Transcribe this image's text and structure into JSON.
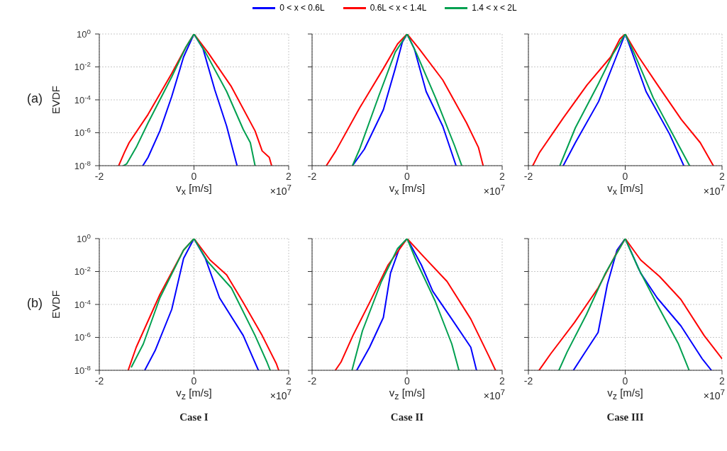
{
  "chart_data": [
    {
      "type": "line",
      "legend": "top",
      "ylabel": "EVDF",
      "xlabel": "v$_{x}$ [m/s]",
      "xlim": [
        -2,
        2
      ],
      "xticks": [
        -2,
        0,
        2
      ],
      "ylim": [
        1e-08,
        1
      ],
      "yticks": [
        {
          "value": 1,
          "label": "10$^{0}$"
        },
        {
          "value": 0.01,
          "label": "10$^{-2}$"
        },
        {
          "value": 0.0001,
          "label": "10$^{-4}$"
        },
        {
          "value": 1e-06,
          "label": "10$^{-6}$"
        },
        {
          "value": 1e-08,
          "label": "10$^{-8}$"
        }
      ],
      "log": "y",
      "grid": true,
      "annotations": [
        "×10$^{7}$",
        "(a)"
      ],
      "series": [
        {
          "name": "0 < x < 0.6L",
          "color": "#0000ff",
          "x": [
            -1.08,
            -0.97,
            -0.72,
            -0.47,
            -0.22,
            0,
            0.19,
            0.44,
            0.69,
            0.91
          ],
          "values": [
            1e-08,
            3.2e-08,
            1.3e-06,
            0.00016,
            0.04,
            1,
            0.13,
            0.0004,
            2.5e-06,
            1e-08
          ]
        },
        {
          "name": "0.6L < x < 1.4L",
          "color": "#ff0000",
          "x": [
            -1.59,
            -1.47,
            -1.37,
            -0.97,
            -0.47,
            -0.17,
            0,
            0.29,
            0.79,
            1.29,
            1.44,
            1.59,
            1.64
          ],
          "values": [
            1e-08,
            6.3e-08,
            2.5e-07,
            1.3e-05,
            0.004,
            0.16,
            1,
            0.079,
            0.00063,
            1.3e-06,
            7.9e-08,
            3.2e-08,
            1e-08
          ]
        },
        {
          "name": "1.4 < x < 2L",
          "color": "#00a050",
          "x": [
            -1.49,
            -1.42,
            -1.22,
            -0.97,
            -0.47,
            -0.17,
            0,
            0.24,
            0.69,
            1.04,
            1.19,
            1.29
          ],
          "values": [
            1e-08,
            1.3e-08,
            1.3e-07,
            4e-06,
            0.0025,
            0.16,
            1,
            0.079,
            0.00032,
            1.6e-06,
            2.5e-07,
            1e-08
          ]
        }
      ]
    },
    {
      "type": "line",
      "xlabel": "v$_{x}$ [m/s]",
      "xlim": [
        -2,
        2
      ],
      "xticks": [
        -2,
        0,
        2
      ],
      "ylim": [
        1e-08,
        1
      ],
      "yticks": [
        {
          "value": 1,
          "label": null
        },
        {
          "value": 0.01,
          "label": null
        },
        {
          "value": 0.0001,
          "label": null
        },
        {
          "value": 1e-06,
          "label": null
        },
        {
          "value": 1e-08,
          "label": null
        }
      ],
      "log": "y",
      "grid": true,
      "tick_labels": "x",
      "annotations": [
        "×10$^{7}$"
      ],
      "series": [
        {
          "color": "#0000ff",
          "x": [
            -1.15,
            -0.9,
            -0.5,
            -0.25,
            -0.1,
            0,
            0.15,
            0.4,
            0.75,
            1.03
          ],
          "values": [
            1e-08,
            1e-07,
            2.5e-05,
            0.0079,
            0.32,
            1,
            0.13,
            0.00032,
            2.5e-06,
            1e-08
          ]
        },
        {
          "color": "#ff0000",
          "x": [
            -1.7,
            -1.5,
            -1,
            -0.5,
            -0.2,
            0,
            0.25,
            0.75,
            1.25,
            1.5,
            1.6
          ],
          "values": [
            1e-08,
            7.9e-08,
            3.2e-05,
            0.0079,
            0.25,
            1,
            0.13,
            0.0016,
            4e-06,
            1.3e-07,
            1e-08
          ]
        },
        {
          "color": "#00a050",
          "x": [
            -1.15,
            -1,
            -0.6,
            -0.25,
            0,
            0.2,
            0.6,
            1,
            1.15
          ],
          "values": [
            1e-08,
            1e-07,
            0.00016,
            0.079,
            1,
            0.063,
            0.00013,
            1.6e-07,
            1e-08
          ]
        }
      ]
    },
    {
      "type": "line",
      "xlabel": "v$_{x}$ [m/s]",
      "xlim": [
        -2,
        2
      ],
      "xticks": [
        -2,
        0,
        2
      ],
      "ylim": [
        1e-08,
        1
      ],
      "yticks": [
        {
          "value": 1,
          "label": null
        },
        {
          "value": 0.01,
          "label": null
        },
        {
          "value": 0.0001,
          "label": null
        },
        {
          "value": 1e-06,
          "label": null
        },
        {
          "value": 1e-08,
          "label": null
        }
      ],
      "log": "y",
      "grid": true,
      "tick_labels": "x",
      "annotations": [
        "×10$^{7}$"
      ],
      "series": [
        {
          "color": "#0000ff",
          "x": [
            -1.28,
            -1.03,
            -0.55,
            -0.2,
            0,
            0.14,
            0.43,
            0.92,
            1.21
          ],
          "values": [
            1e-08,
            2.5e-07,
            7.9e-05,
            0.032,
            1,
            0.079,
            0.00032,
            7.9e-07,
            1e-08
          ]
        },
        {
          "color": "#ff0000",
          "x": [
            -1.91,
            -1.77,
            -1.28,
            -0.79,
            -0.3,
            -0.11,
            0,
            0.28,
            0.67,
            1.16,
            1.55,
            1.82
          ],
          "values": [
            1e-08,
            6.3e-08,
            7.9e-06,
            0.00079,
            0.04,
            0.5,
            1,
            0.04,
            0.00079,
            6.3e-06,
            2.5e-07,
            1e-08
          ]
        },
        {
          "color": "#00a050",
          "x": [
            -1.35,
            -1.03,
            -0.55,
            -0.25,
            0,
            0.19,
            0.58,
            1.11,
            1.33
          ],
          "values": [
            1e-08,
            2e-06,
            0.001,
            0.063,
            1,
            0.063,
            0.00013,
            1.6e-07,
            1e-08
          ]
        }
      ]
    },
    {
      "type": "line",
      "ylabel": "EVDF",
      "xlabel": "v$_{z}$ [m/s]",
      "xlim": [
        -2,
        2
      ],
      "xticks": [
        -2,
        0,
        2
      ],
      "ylim": [
        1e-08,
        1
      ],
      "yticks": [
        {
          "value": 1,
          "label": "10$^{0}$"
        },
        {
          "value": 0.01,
          "label": "10$^{-2}$"
        },
        {
          "value": 0.0001,
          "label": "10$^{-4}$"
        },
        {
          "value": 1e-06,
          "label": "10$^{-6}$"
        },
        {
          "value": 1e-08,
          "label": "10$^{-8}$"
        }
      ],
      "log": "y",
      "grid": true,
      "annotations": [
        "×10$^{7}$",
        "(b)",
        "Case I"
      ],
      "series": [
        {
          "color": "#0000ff",
          "x": [
            -1.04,
            -0.82,
            -0.47,
            -0.22,
            0,
            0.24,
            0.54,
            1.04,
            1.36
          ],
          "values": [
            1e-08,
            1.6e-07,
            5e-05,
            0.063,
            1,
            0.063,
            0.00025,
            1.3e-06,
            1e-08
          ]
        },
        {
          "color": "#ff0000",
          "x": [
            -1.39,
            -1.22,
            -0.72,
            -0.22,
            0,
            0.34,
            0.69,
            1.04,
            1.44,
            1.74,
            1.79
          ],
          "values": [
            1e-08,
            2.5e-07,
            0.0004,
            0.2,
            1,
            0.05,
            0.0063,
            0.00013,
            1.3e-06,
            2.5e-08,
            1e-08
          ]
        },
        {
          "color": "#00a050",
          "x": [
            -1.32,
            -1.07,
            -0.72,
            -0.22,
            0,
            0.29,
            0.79,
            1.29,
            1.54,
            1.61
          ],
          "values": [
            1.6e-08,
            4e-07,
            0.00025,
            0.2,
            1,
            0.04,
            0.001,
            1.3e-06,
            3.2e-08,
            1e-08
          ]
        }
      ]
    },
    {
      "type": "line",
      "xlabel": "v$_{z}$ [m/s]",
      "xlim": [
        -2,
        2
      ],
      "xticks": [
        -2,
        0,
        2
      ],
      "ylim": [
        1e-08,
        1
      ],
      "yticks": [
        {
          "value": 1,
          "label": null
        },
        {
          "value": 0.01,
          "label": null
        },
        {
          "value": 0.0001,
          "label": null
        },
        {
          "value": 1e-06,
          "label": null
        },
        {
          "value": 1e-08,
          "label": null
        }
      ],
      "log": "y",
      "grid": true,
      "tick_labels": "x",
      "annotations": [
        "×10$^{7}$",
        "Case II"
      ],
      "series": [
        {
          "color": "#0000ff",
          "x": [
            -1.06,
            -0.79,
            -0.5,
            -0.35,
            -0.15,
            0,
            0.3,
            0.54,
            0.94,
            1.34,
            1.46
          ],
          "values": [
            1e-08,
            2.5e-07,
            1.6e-05,
            0.0079,
            0.32,
            1,
            0.025,
            0.00063,
            1.3e-05,
            2.5e-07,
            1e-08
          ]
        },
        {
          "color": "#ff0000",
          "x": [
            -1.51,
            -1.39,
            -1.14,
            -0.79,
            -0.4,
            0,
            0.35,
            0.84,
            1.34,
            1.73,
            1.86
          ],
          "values": [
            1e-08,
            3.2e-08,
            1.3e-06,
            0.00013,
            0.025,
            1,
            0.079,
            0.0025,
            1.3e-05,
            6.3e-08,
            1e-08
          ]
        },
        {
          "color": "#00a050",
          "x": [
            -1.16,
            -0.94,
            -0.54,
            -0.2,
            0,
            0.2,
            0.59,
            0.94,
            1.09
          ],
          "values": [
            1e-08,
            2.5e-06,
            0.0025,
            0.25,
            1,
            0.04,
            0.00016,
            4e-07,
            1e-08
          ]
        }
      ]
    },
    {
      "type": "line",
      "xlabel": "v$_{z}$ [m/s]",
      "xlim": [
        -2,
        2
      ],
      "xticks": [
        -2,
        0,
        2
      ],
      "ylim": [
        1e-08,
        1
      ],
      "yticks": [
        {
          "value": 1,
          "label": null
        },
        {
          "value": 0.01,
          "label": null
        },
        {
          "value": 0.0001,
          "label": null
        },
        {
          "value": 1e-06,
          "label": null
        },
        {
          "value": 1e-08,
          "label": null
        }
      ],
      "log": "y",
      "grid": true,
      "tick_labels": "x",
      "annotations": [
        "×10$^{7}$",
        "Case III"
      ],
      "series": [
        {
          "color": "#0000ff",
          "x": [
            -1.07,
            -0.85,
            -0.56,
            -0.37,
            -0.17,
            0,
            0.32,
            0.66,
            1.15,
            1.59,
            1.78
          ],
          "values": [
            1e-08,
            1e-07,
            2e-06,
            0.0016,
            0.2,
            1,
            0.0079,
            0.00025,
            5e-06,
            5e-08,
            1e-08
          ]
        },
        {
          "color": "#ff0000",
          "x": [
            -1.78,
            -1.54,
            -1.05,
            -0.56,
            -0.22,
            0,
            0.32,
            0.71,
            1.15,
            1.63,
            2
          ],
          "values": [
            1e-08,
            1e-07,
            7.9e-06,
            0.001,
            0.079,
            1,
            0.05,
            0.005,
            0.0002,
            1.3e-06,
            5e-08
          ]
        },
        {
          "color": "#00a050",
          "x": [
            -1.37,
            -1.2,
            -0.8,
            -0.41,
            0,
            0.27,
            0.66,
            1.1,
            1.32
          ],
          "values": [
            1e-08,
            1.3e-07,
            2.5e-05,
            0.0079,
            1,
            0.016,
            0.0001,
            4e-07,
            1e-08
          ]
        }
      ]
    }
  ]
}
